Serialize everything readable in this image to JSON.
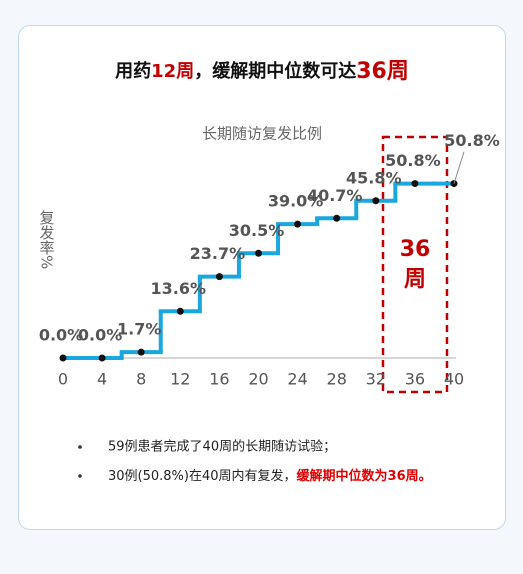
{
  "title_parts": [
    "用药",
    "12周",
    "，缓解期中位数可达",
    "36周"
  ],
  "chart_data": {
    "type": "step",
    "title": "长期随访复发比例",
    "y_label": "复发率%",
    "x": [
      0,
      4,
      8,
      12,
      16,
      20,
      24,
      28,
      32,
      36,
      40
    ],
    "values": [
      0.0,
      0.0,
      1.7,
      13.6,
      23.7,
      30.5,
      39.0,
      40.7,
      45.8,
      50.8,
      50.8
    ],
    "value_labels": [
      "0.0%",
      "0.0%",
      "1.7%",
      "13.6%",
      "23.7%",
      "30.5%",
      "39.0%",
      "40.7%",
      "45.8%",
      "50.8%",
      "50.8%"
    ],
    "color": "#1aa7e0",
    "xlim": [
      0,
      40
    ],
    "xticks": [
      0,
      4,
      8,
      12,
      16,
      20,
      24,
      28,
      32,
      36,
      40
    ],
    "ylim": [
      0,
      60
    ],
    "annotation": [
      "36",
      "周"
    ]
  },
  "notes": [
    {
      "text": "59例患者完成了40周的长期随访试验；"
    },
    {
      "text": "30例(50.8%)在40周内有复发，",
      "highlight": "缓解期中位数为36周。"
    }
  ]
}
